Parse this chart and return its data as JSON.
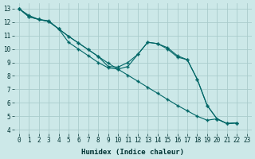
{
  "bg_color": "#cce8e8",
  "grid_color": "#aacccc",
  "line_color": "#006666",
  "xlabel": "Humidex (Indice chaleur)",
  "xlim": [
    -0.5,
    23.5
  ],
  "ylim": [
    3.7,
    13.4
  ],
  "xticks": [
    0,
    1,
    2,
    3,
    4,
    5,
    6,
    7,
    8,
    9,
    10,
    11,
    12,
    13,
    14,
    15,
    16,
    17,
    18,
    19,
    20,
    21,
    22,
    23
  ],
  "yticks": [
    4,
    5,
    6,
    7,
    8,
    9,
    10,
    11,
    12,
    13
  ],
  "line_straight_x": [
    0,
    1,
    2,
    3,
    4,
    5,
    6,
    7,
    8,
    9,
    10,
    11,
    12,
    13,
    14,
    15,
    16,
    17,
    18,
    19,
    20,
    21,
    22
  ],
  "line_straight_y": [
    13.0,
    12.5,
    12.2,
    12.05,
    11.5,
    10.95,
    10.45,
    9.95,
    9.45,
    8.95,
    8.5,
    8.05,
    7.6,
    7.15,
    6.7,
    6.25,
    5.8,
    5.4,
    5.0,
    4.7,
    4.8,
    4.45,
    4.5
  ],
  "line_mid_x": [
    0,
    1,
    2,
    3,
    4,
    5,
    6,
    7,
    8,
    9,
    10,
    11,
    12,
    13,
    14,
    15,
    16,
    17,
    18,
    19,
    20,
    21,
    22
  ],
  "line_mid_y": [
    13.0,
    12.4,
    12.2,
    12.05,
    11.5,
    10.95,
    10.45,
    9.95,
    9.45,
    8.7,
    8.65,
    9.0,
    9.6,
    10.5,
    10.4,
    10.1,
    9.5,
    9.2,
    7.75,
    5.8,
    4.8,
    4.45,
    4.5
  ],
  "line_upper_x": [
    0,
    1,
    2,
    3,
    4,
    5,
    6,
    7,
    8,
    9,
    10,
    11,
    12,
    13,
    14,
    15,
    16,
    17,
    18,
    19,
    20,
    21,
    22
  ],
  "line_upper_y": [
    13.0,
    12.4,
    12.2,
    12.1,
    11.5,
    10.5,
    10.0,
    9.5,
    9.0,
    8.6,
    8.5,
    8.7,
    9.6,
    10.5,
    10.4,
    10.0,
    9.4,
    9.2,
    7.75,
    5.8,
    4.8,
    4.45,
    4.5
  ]
}
